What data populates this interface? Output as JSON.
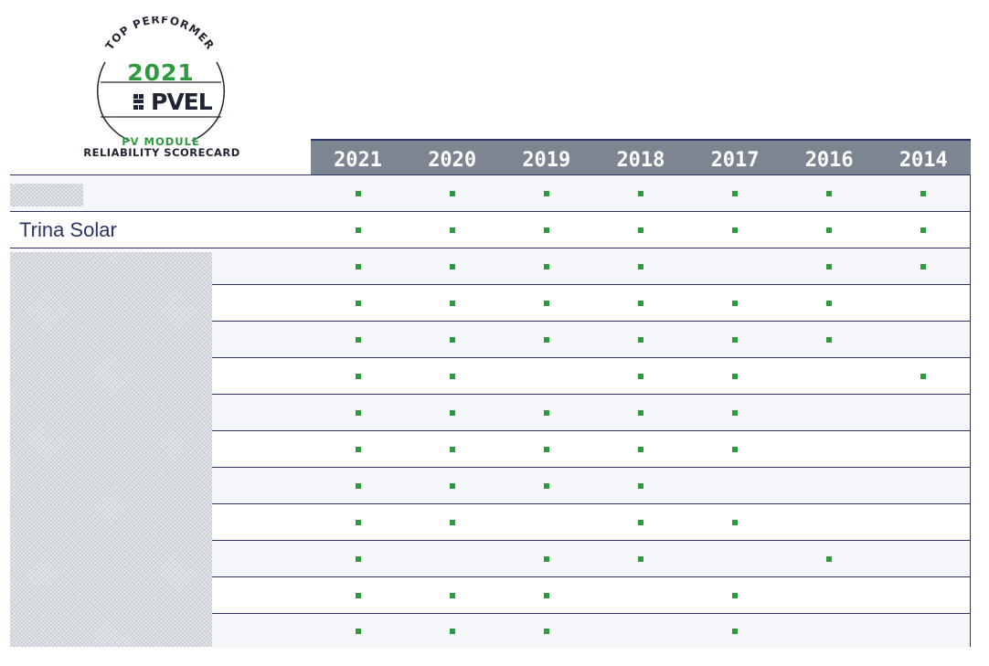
{
  "badge": {
    "arc_text": "TOP PERFORMER",
    "year": "2021",
    "logo": "PVEL",
    "line1": "PV MODULE",
    "line2": "RELIABILITY SCORECARD",
    "colors": {
      "green": "#2e9a3e",
      "navy": "#1f2533"
    }
  },
  "table": {
    "header_bg": "#7d8590",
    "years": [
      "2021",
      "2020",
      "2019",
      "2018",
      "2017",
      "2016",
      "2014"
    ],
    "rows": [
      {
        "label": "",
        "marks": [
          1,
          1,
          1,
          1,
          1,
          1,
          1
        ]
      },
      {
        "label": "Trina Solar",
        "marks": [
          1,
          1,
          1,
          1,
          1,
          1,
          1
        ]
      },
      {
        "label": "",
        "marks": [
          1,
          1,
          1,
          1,
          0,
          1,
          1
        ]
      },
      {
        "label": "",
        "marks": [
          1,
          1,
          1,
          1,
          1,
          1,
          0
        ]
      },
      {
        "label": "",
        "marks": [
          1,
          1,
          1,
          1,
          1,
          1,
          0
        ]
      },
      {
        "label": "",
        "marks": [
          1,
          1,
          0,
          1,
          1,
          0,
          1
        ]
      },
      {
        "label": "",
        "marks": [
          1,
          1,
          1,
          1,
          1,
          0,
          0
        ]
      },
      {
        "label": "",
        "marks": [
          1,
          1,
          1,
          1,
          1,
          0,
          0
        ]
      },
      {
        "label": "",
        "marks": [
          1,
          1,
          1,
          1,
          0,
          0,
          0
        ]
      },
      {
        "label": "",
        "marks": [
          1,
          1,
          0,
          1,
          1,
          0,
          0
        ]
      },
      {
        "label": "",
        "marks": [
          1,
          0,
          1,
          1,
          0,
          1,
          0
        ]
      },
      {
        "label": "",
        "marks": [
          1,
          1,
          1,
          0,
          1,
          0,
          0
        ]
      },
      {
        "label": "",
        "marks": [
          1,
          1,
          1,
          0,
          1,
          0,
          0
        ]
      }
    ]
  }
}
